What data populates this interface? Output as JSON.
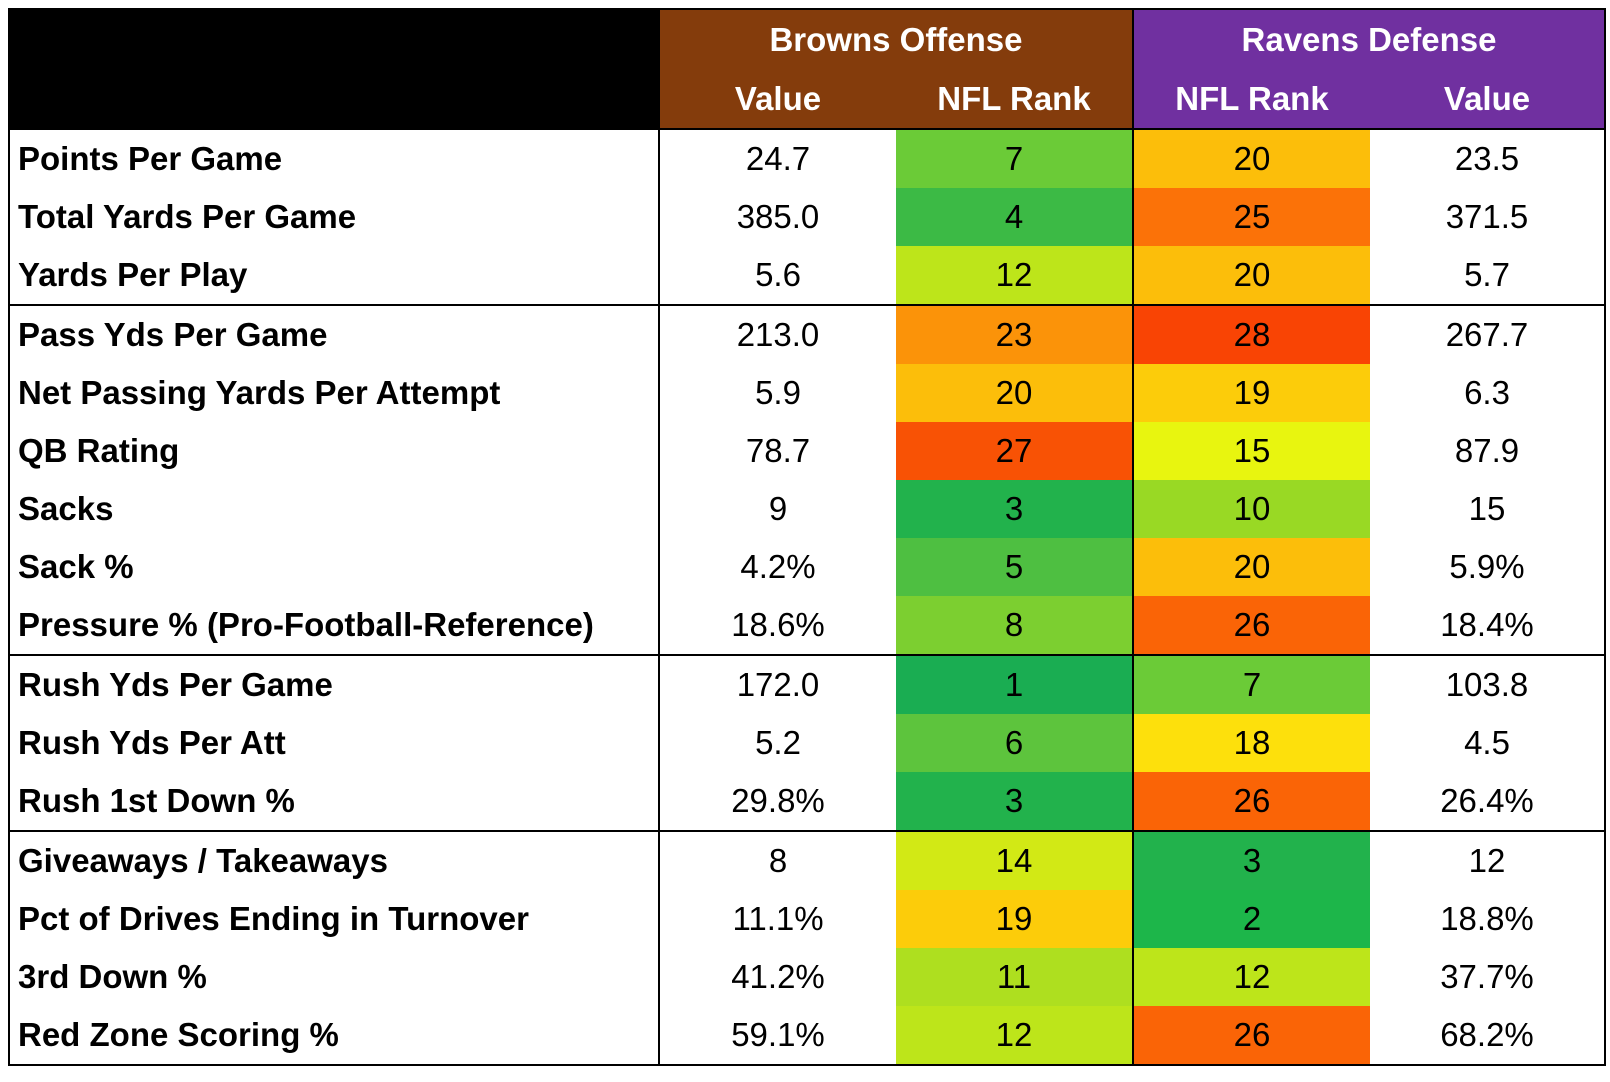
{
  "header": {
    "corner": "",
    "browns": "Browns Offense",
    "ravens": "Ravens Defense",
    "browns_value": "Value",
    "browns_rank": "NFL Rank",
    "ravens_rank": "NFL Rank",
    "ravens_value": "Value"
  },
  "groups": [
    {
      "rows": [
        {
          "metric": "Points Per Game",
          "browns_value": "24.7",
          "browns_rank": 7,
          "browns_rank_color": "#6bcb37",
          "ravens_rank": 20,
          "ravens_rank_color": "#fcbe0a",
          "ravens_value": "23.5"
        },
        {
          "metric": "Total Yards Per Game",
          "browns_value": "385.0",
          "browns_rank": 4,
          "browns_rank_color": "#3cba45",
          "ravens_rank": 25,
          "ravens_rank_color": "#fb7208",
          "ravens_value": "371.5"
        },
        {
          "metric": "Yards Per Play",
          "browns_value": "5.6",
          "browns_rank": 12,
          "browns_rank_color": "#bde51a",
          "ravens_rank": 20,
          "ravens_rank_color": "#fcbe0a",
          "ravens_value": "5.7"
        }
      ]
    },
    {
      "rows": [
        {
          "metric": "Pass Yds Per Game",
          "browns_value": "213.0",
          "browns_rank": 23,
          "browns_rank_color": "#fb9309",
          "ravens_rank": 28,
          "ravens_rank_color": "#f94404",
          "ravens_value": "267.7"
        },
        {
          "metric": "Net Passing Yards Per Attempt",
          "browns_value": "5.9",
          "browns_rank": 20,
          "browns_rank_color": "#fcbe0a",
          "ravens_rank": 19,
          "ravens_rank_color": "#fccc0a",
          "ravens_value": "6.3"
        },
        {
          "metric": "QB Rating",
          "browns_value": "78.7",
          "browns_rank": 27,
          "browns_rank_color": "#f85205",
          "ravens_rank": 15,
          "ravens_rank_color": "#e8f50f",
          "ravens_value": "87.9"
        },
        {
          "metric": "Sacks",
          "browns_value": "9",
          "browns_rank": 3,
          "browns_rank_color": "#22b24c",
          "ravens_rank": 10,
          "ravens_rank_color": "#99d924",
          "ravens_value": "15"
        },
        {
          "metric": "Sack %",
          "browns_value": "4.2%",
          "browns_rank": 5,
          "browns_rank_color": "#4ebf41",
          "ravens_rank": 20,
          "ravens_rank_color": "#fcbe0a",
          "ravens_value": "5.9%"
        },
        {
          "metric": "Pressure % (Pro-Football-Reference)",
          "browns_value": "18.6%",
          "browns_rank": 8,
          "browns_rank_color": "#7ccf30",
          "ravens_rank": 26,
          "ravens_rank_color": "#fa6406",
          "ravens_value": "18.4%"
        }
      ]
    },
    {
      "rows": [
        {
          "metric": "Rush Yds Per Game",
          "browns_value": "172.0",
          "browns_rank": 1,
          "browns_rank_color": "#1aad52",
          "ravens_rank": 7,
          "ravens_rank_color": "#6bcb37",
          "ravens_value": "103.8"
        },
        {
          "metric": "Rush Yds Per Att",
          "browns_value": "5.2",
          "browns_rank": 6,
          "browns_rank_color": "#5dc43d",
          "ravens_rank": 18,
          "ravens_rank_color": "#fde00c",
          "ravens_value": "4.5"
        },
        {
          "metric": "Rush 1st Down %",
          "browns_value": "29.8%",
          "browns_rank": 3,
          "browns_rank_color": "#22b24c",
          "ravens_rank": 26,
          "ravens_rank_color": "#fa6406",
          "ravens_value": "26.4%"
        }
      ]
    },
    {
      "rows": [
        {
          "metric": "Giveaways / Takeaways",
          "browns_value": "8",
          "browns_rank": 14,
          "browns_rank_color": "#d2e915",
          "ravens_rank": 3,
          "ravens_rank_color": "#22b24c",
          "ravens_value": "12"
        },
        {
          "metric": "Pct of Drives Ending in Turnover",
          "browns_value": "11.1%",
          "browns_rank": 19,
          "browns_rank_color": "#fccc0a",
          "ravens_rank": 2,
          "ravens_rank_color": "#1db64a",
          "ravens_value": "18.8%"
        },
        {
          "metric": "3rd Down %",
          "browns_value": "41.2%",
          "browns_rank": 11,
          "browns_rank_color": "#aedf1f",
          "ravens_rank": 12,
          "ravens_rank_color": "#bde51a",
          "ravens_value": "37.7%"
        },
        {
          "metric": "Red Zone Scoring %",
          "browns_value": "59.1%",
          "browns_rank": 12,
          "browns_rank_color": "#bde51a",
          "ravens_rank": 26,
          "ravens_rank_color": "#fa6406",
          "ravens_value": "68.2%"
        }
      ]
    }
  ]
}
